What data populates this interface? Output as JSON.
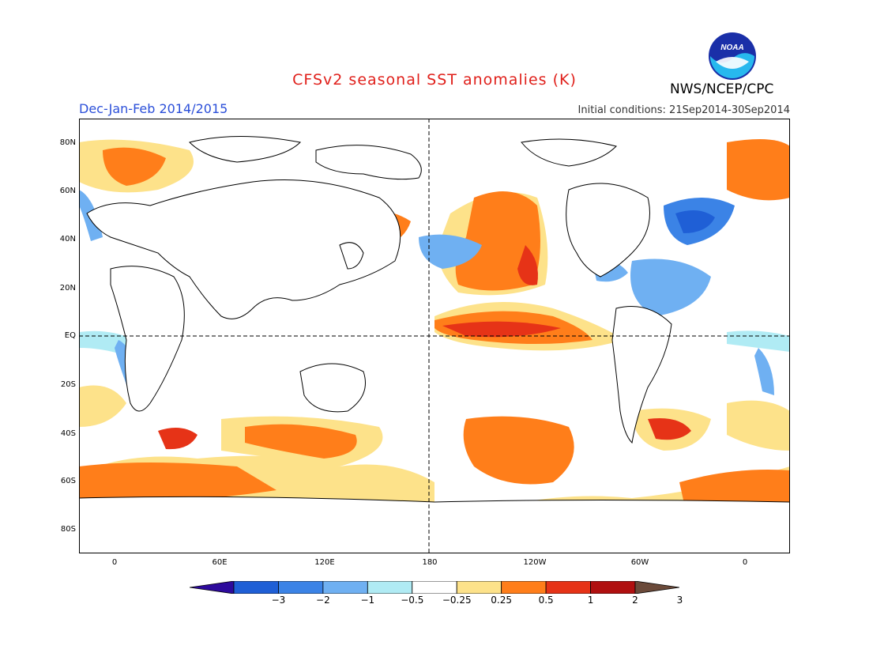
{
  "header": {
    "title": "CFSv2 seasonal SST anomalies (K)",
    "season": "Dec-Jan-Feb 2014/2015",
    "initial_conditions": "Initial conditions: 21Sep2014-30Sep2014",
    "agency": "NWS/NCEP/CPC",
    "logo_text": "NOAA"
  },
  "map": {
    "lat_labels": [
      "80N",
      "60N",
      "40N",
      "20N",
      "EQ",
      "20S",
      "40S",
      "60S",
      "80S"
    ],
    "lon_labels": [
      "0",
      "60E",
      "120E",
      "180",
      "120W",
      "60W",
      "0"
    ]
  },
  "colorbar": {
    "labels": [
      "-3",
      "-2",
      "-1",
      "-0.5",
      "-0.25",
      "0.25",
      "0.5",
      "1",
      "2",
      "3"
    ],
    "colors": [
      "#2d0a9c",
      "#1f5fd6",
      "#3b83e6",
      "#6fb0f2",
      "#b0ebf4",
      "#ffffff",
      "#fde28a",
      "#ff7e1a",
      "#e63317",
      "#b01010",
      "#6b4a3a"
    ]
  }
}
